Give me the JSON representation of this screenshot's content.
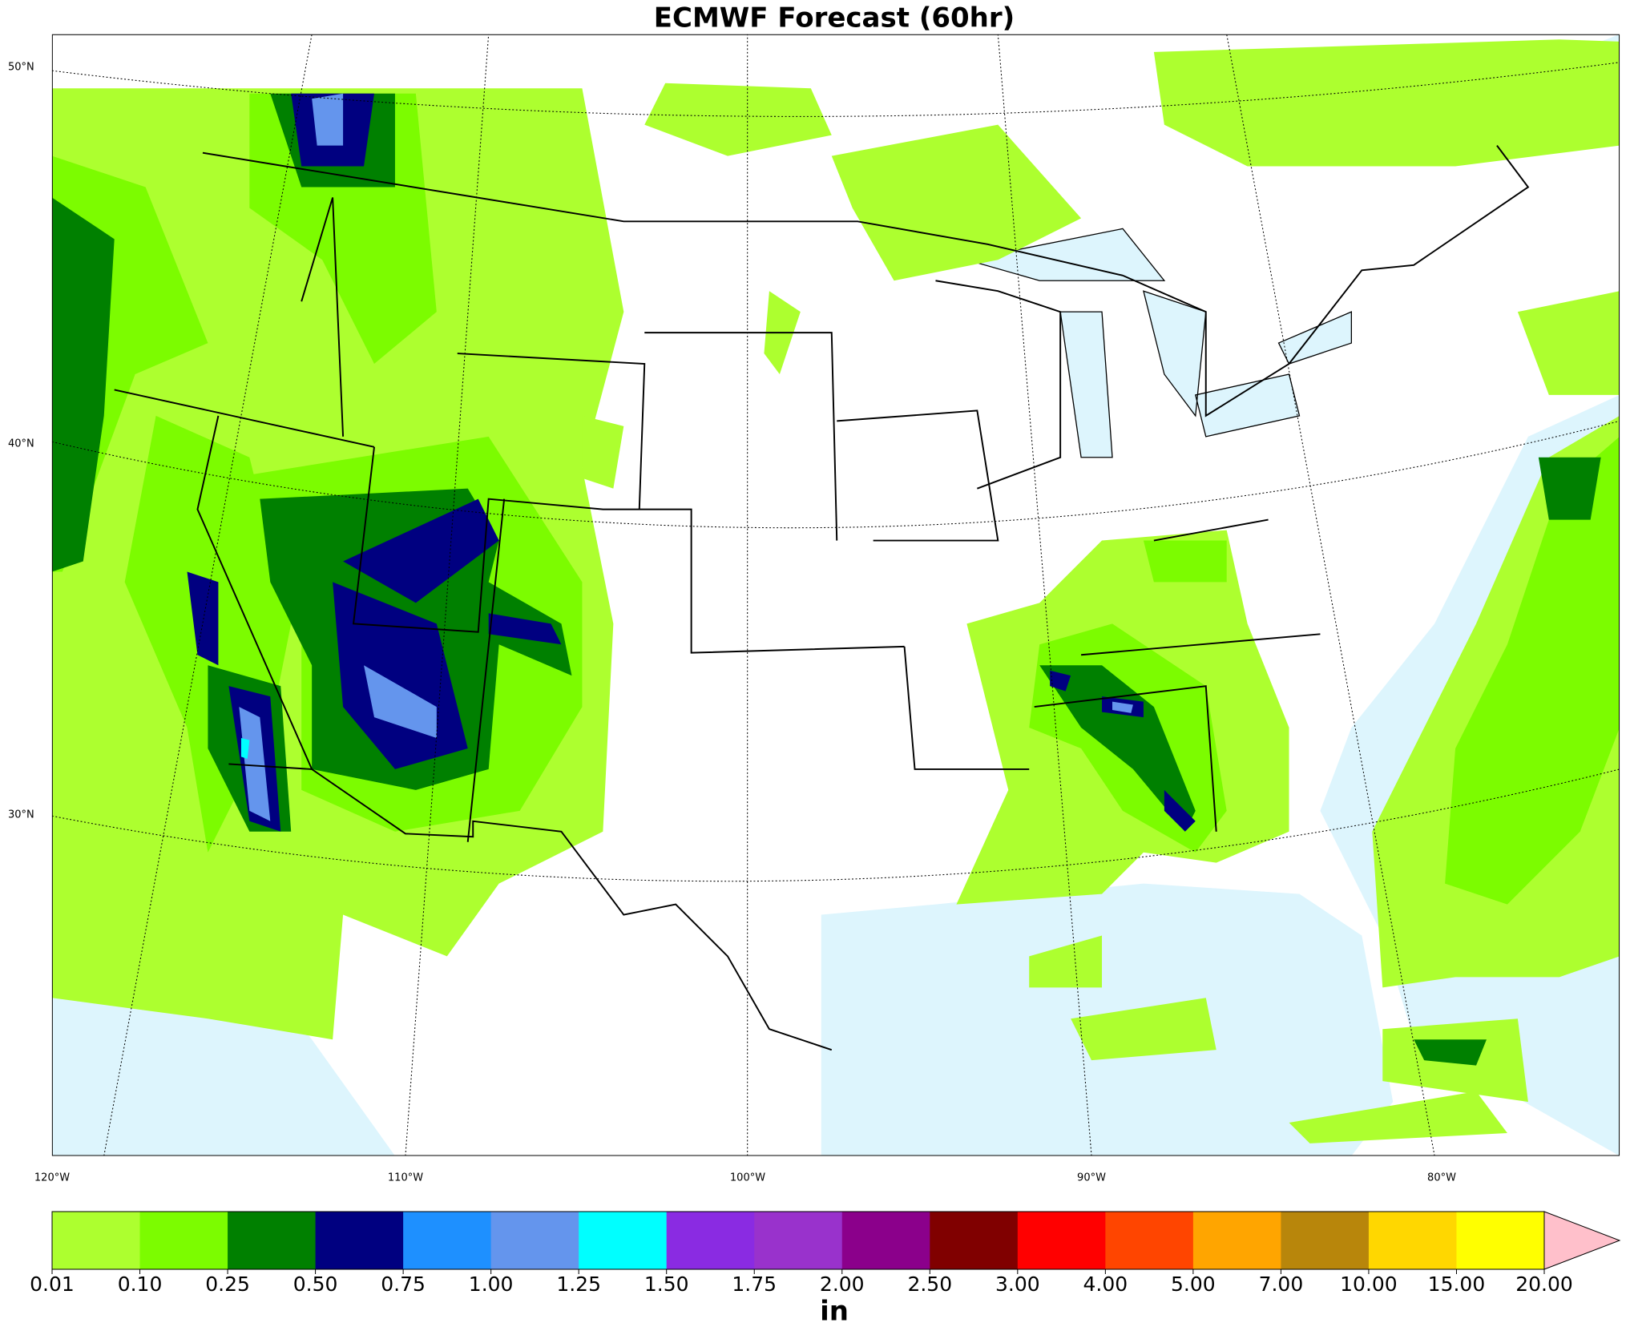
{
  "title": "ECMWF Forecast (60hr)",
  "lat_labels": [
    "50°N",
    "40°N",
    "30°N"
  ],
  "lon_labels": [
    "120°W",
    "110°W",
    "100°W",
    "90°W",
    "80°W"
  ],
  "colorbar": {
    "ticks": [
      "0.01",
      "0.10",
      "0.25",
      "0.50",
      "0.75",
      "1.00",
      "1.25",
      "1.50",
      "1.75",
      "2.00",
      "2.50",
      "3.00",
      "4.00",
      "5.00",
      "7.00",
      "10.00",
      "15.00",
      "20.00"
    ],
    "colors": [
      "#adff2f",
      "#7cfc00",
      "#008000",
      "#000080",
      "#1e90ff",
      "#6495ed",
      "#00ffff",
      "#8a2be2",
      "#9932cc",
      "#8b008b",
      "#800000",
      "#ff0000",
      "#ff4500",
      "#ffa500",
      "#b8860b",
      "#ffd700",
      "#ffff00"
    ],
    "over_color": "#ffc0cb",
    "unit": "in"
  }
}
